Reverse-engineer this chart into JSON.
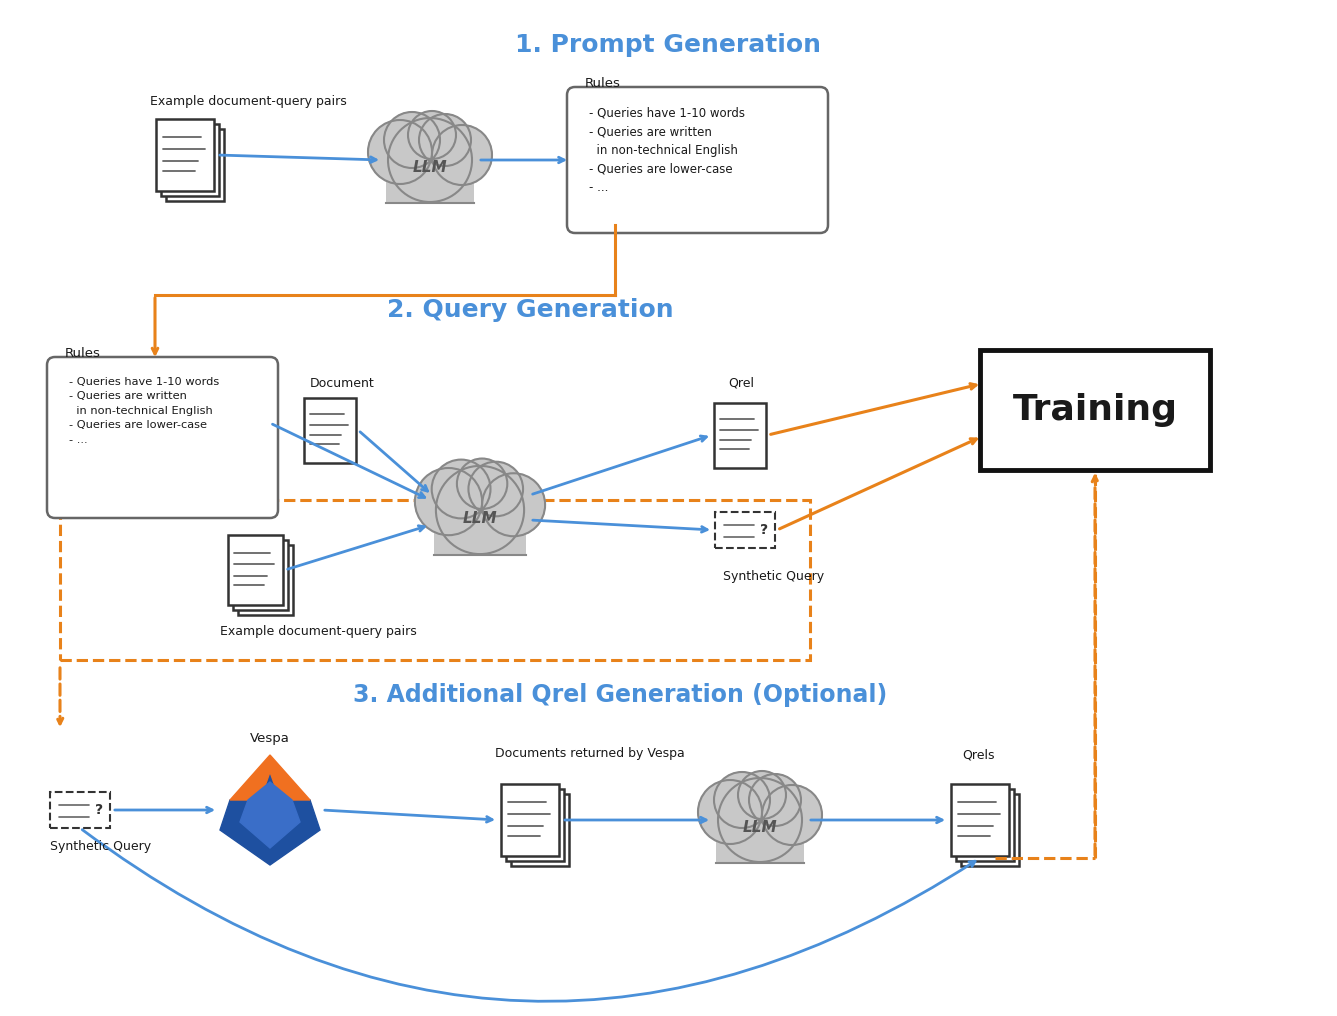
{
  "title1": "1. Prompt Generation",
  "title2": "2. Query Generation",
  "title3": "3. Additional Qrel Generation (Optional)",
  "blue_color": "#4a90d9",
  "orange_color": "#f5a623",
  "dark_orange": "#e8821a",
  "bg_color": "#ffffff",
  "text_color": "#1a1a1a",
  "cloud_fill": "#c8c8c8",
  "cloud_edge": "#888888",
  "rules_text_1": "- Queries have 1-10 words\n- Queries are written\n  in non-technical English\n- Queries are lower-case\n- ...",
  "rules_box_label": "Rules",
  "document_label": "Document",
  "example_pairs_label": "Example document-query pairs",
  "qrel_label": "Qrel",
  "qrels_label": "Qrels",
  "synthetic_query_label": "Synthetic Query",
  "vespa_label": "Vespa",
  "docs_returned_label": "Documents returned by Vespa",
  "training_label": "Training",
  "llm_label": "LLM"
}
